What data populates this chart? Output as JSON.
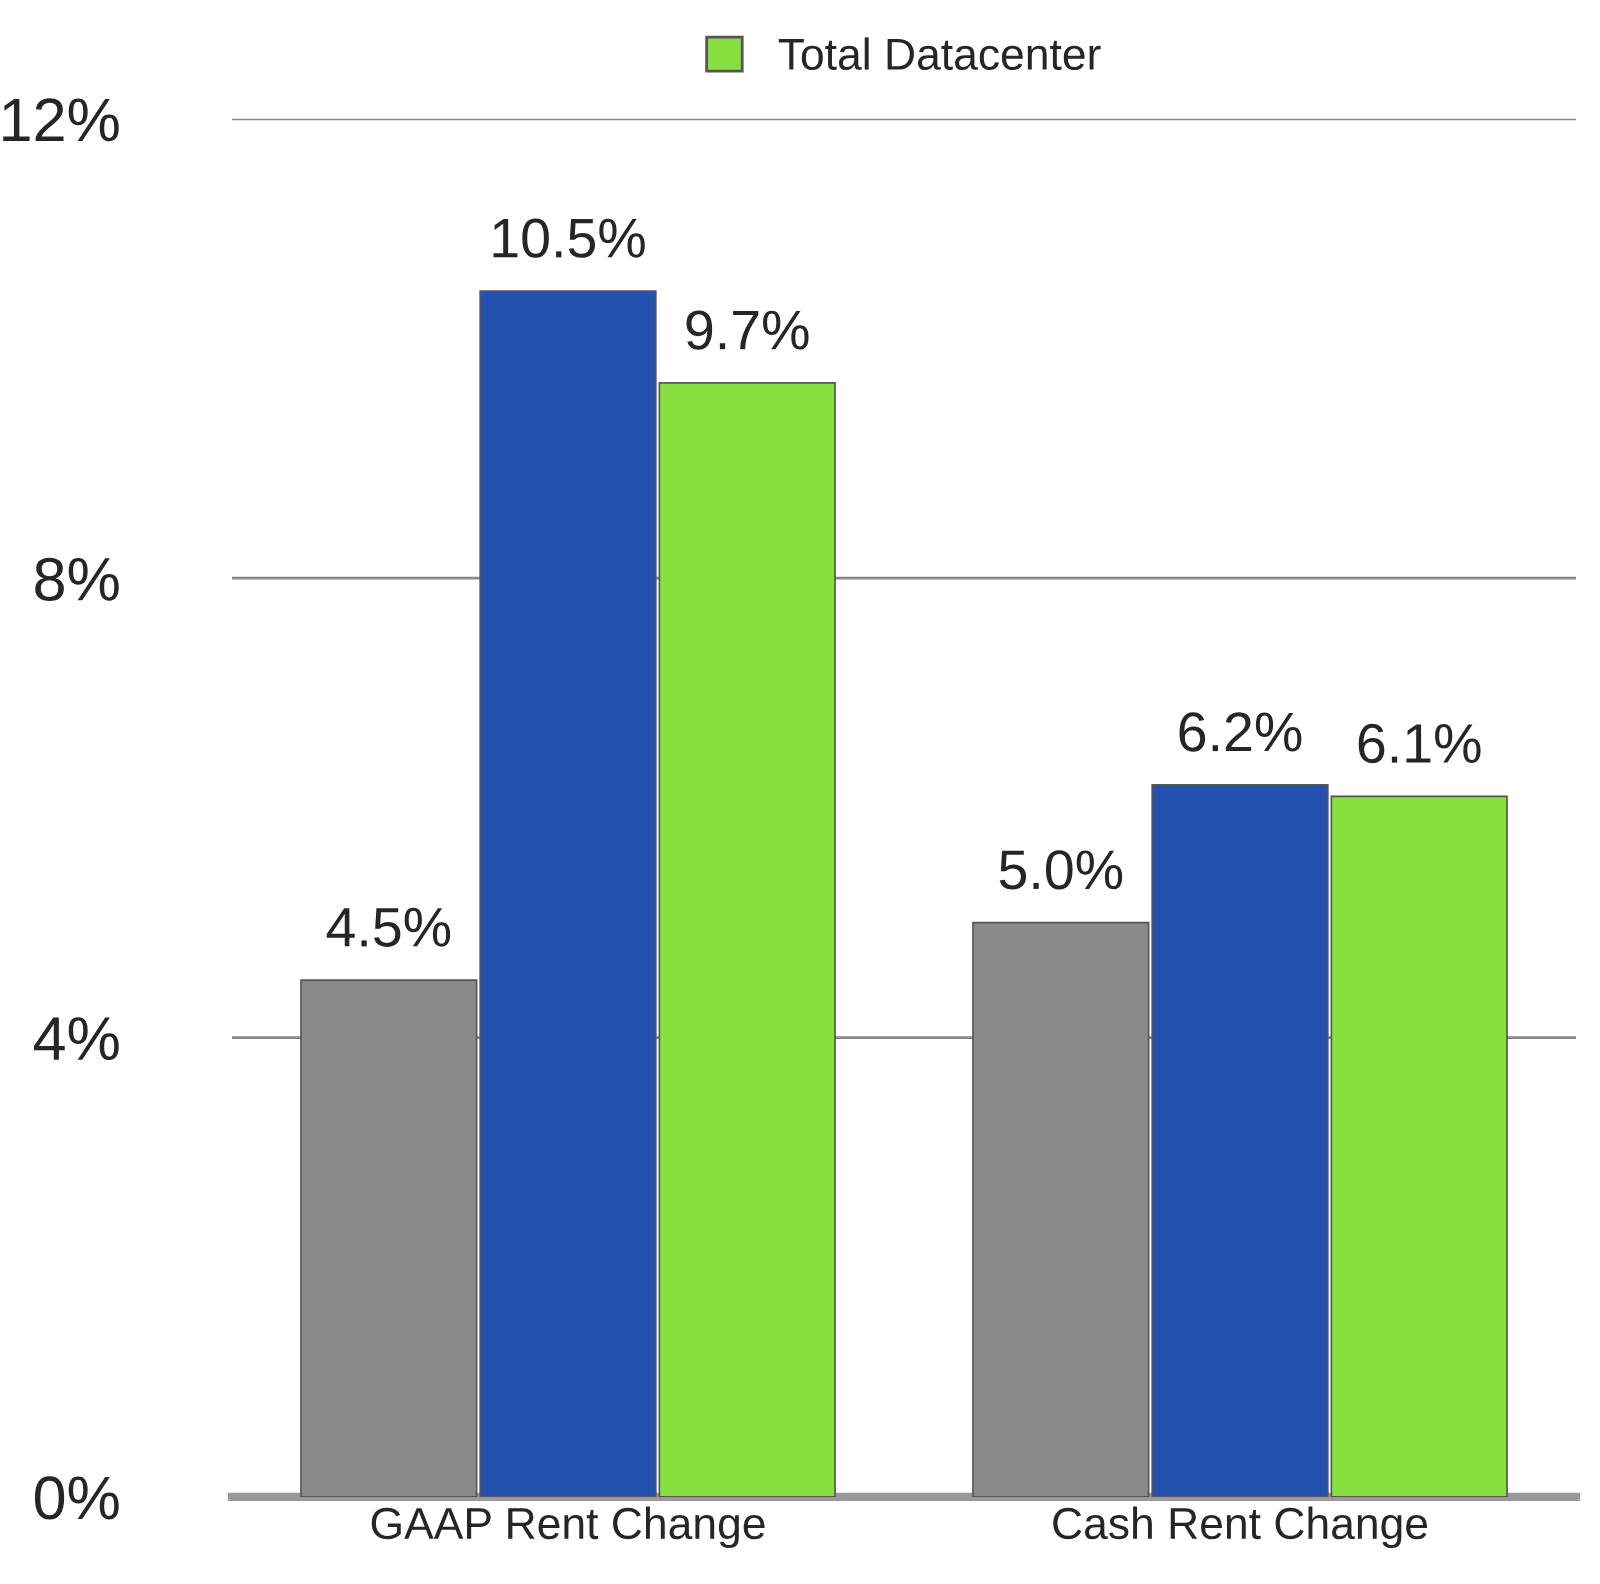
{
  "chart_data": {
    "type": "bar",
    "categories": [
      "GAAP Rent Change",
      "Cash Rent Change"
    ],
    "series": [
      {
        "color": "#8a8a8a",
        "values": [
          4.5,
          5.0
        ],
        "value_labels": [
          "4.5%",
          "5.0%"
        ]
      },
      {
        "color": "#2352b0",
        "values": [
          10.5,
          6.2
        ],
        "value_labels": [
          "10.5%",
          "6.2%"
        ]
      },
      {
        "name": "Total Datacenter",
        "color": "#88e040",
        "values": [
          9.7,
          6.1
        ],
        "value_labels": [
          "9.7%",
          "6.1%"
        ]
      }
    ],
    "ylim": [
      0,
      12
    ],
    "yticks": [
      {
        "value": 0,
        "label": "0%"
      },
      {
        "value": 4,
        "label": "4%"
      },
      {
        "value": 8,
        "label": "8%"
      },
      {
        "value": 12,
        "label": "12%"
      }
    ],
    "grid": "y",
    "legend": "top"
  }
}
